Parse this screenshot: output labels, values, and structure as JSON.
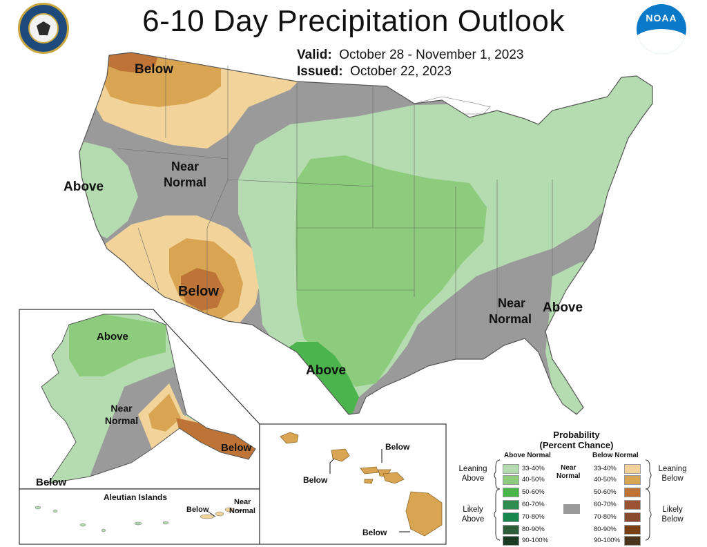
{
  "header": {
    "title": "6-10 Day Precipitation Outlook",
    "valid_label": "Valid:",
    "valid_value": "October 28 - November 1, 2023",
    "issued_label": "Issued:",
    "issued_value": "October 22, 2023"
  },
  "logos": {
    "left": "department-of-commerce-seal",
    "right": "noaa-logo",
    "noaa_text": "NOAA"
  },
  "map_labels": {
    "nw_below": "Below",
    "near_normal_w_1": "Near",
    "near_normal_w_2": "Normal",
    "above_w": "Above",
    "below_sw": "Below",
    "near_normal_se_1": "Near",
    "near_normal_se_2": "Normal",
    "above_se": "Above",
    "above_tx": "Above",
    "ak_above": "Above",
    "ak_near_1": "Near",
    "ak_near_2": "Normal",
    "ak_below_se": "Below",
    "ak_below_sw": "Below",
    "aleutian_title": "Aleutian Islands",
    "aleutian_below": "Below",
    "aleutian_near_1": "Near",
    "aleutian_near_2": "Normal",
    "hi_below_1": "Below",
    "hi_below_2": "Below",
    "hi_below_3": "Below"
  },
  "legend": {
    "title_1": "Probability",
    "title_2": "(Percent Chance)",
    "above_header": "Above Normal",
    "below_header": "Below Normal",
    "near_1": "Near",
    "near_2": "Normal",
    "leaning_above_1": "Leaning",
    "leaning_above_2": "Above",
    "likely_above_1": "Likely",
    "likely_above_2": "Above",
    "leaning_below_1": "Leaning",
    "leaning_below_2": "Below",
    "likely_below_1": "Likely",
    "likely_below_2": "Below",
    "ranges": [
      "33-40%",
      "40-50%",
      "50-60%",
      "60-70%",
      "70-80%",
      "80-90%",
      "90-100%"
    ],
    "above_colors": [
      "#b4dcb0",
      "#8ccc7c",
      "#4cb44c",
      "#2e8c4e",
      "#17864e",
      "#2c5e3a",
      "#1a3a22"
    ],
    "below_colors": [
      "#f2d49a",
      "#d9a552",
      "#bd7436",
      "#9c5233",
      "#8a4a30",
      "#7a3f12",
      "#4a341c"
    ],
    "near_color": "#9a9a9a"
  }
}
